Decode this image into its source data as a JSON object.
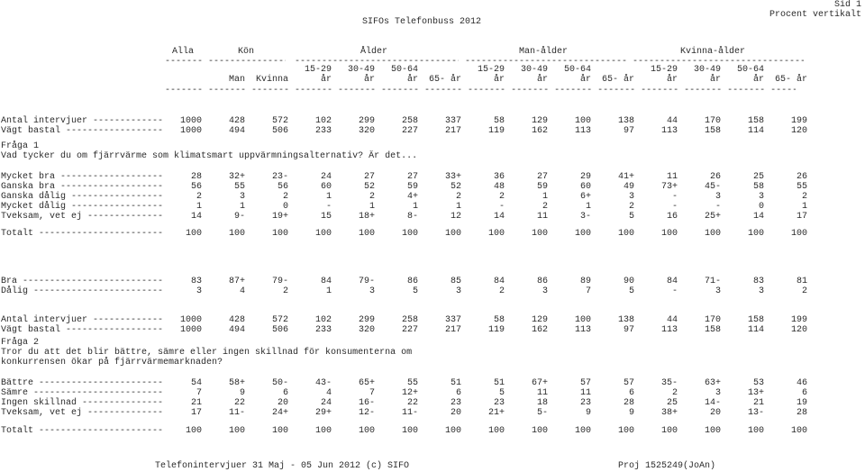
{
  "header": {
    "sid": "Sid 1",
    "procent": "Procent vertikalt",
    "title": "SIFOs Telefonbuss 2012"
  },
  "columns": {
    "groups": {
      "alla": "Alla",
      "kon": "Kön",
      "alder": "Ålder",
      "man_alder": "Man-ålder",
      "kvinna_alder": "Kvinna-ålder"
    },
    "sub_top": [
      "",
      "",
      "",
      "15-29",
      "30-49",
      "50-64",
      "",
      "15-29",
      "30-49",
      "50-64",
      "",
      "15-29",
      "30-49",
      "50-64",
      ""
    ],
    "sub_bottom": [
      "",
      "Man",
      "Kvinna",
      "år",
      "år",
      "år",
      "65- år",
      "år",
      "år",
      "år",
      "65- år",
      "år",
      "år",
      "år",
      "65- år"
    ]
  },
  "blocks": {
    "base1": [
      {
        "label": "Antal intervjuer -------------",
        "values": [
          "1000",
          "428",
          "572",
          "102",
          "299",
          "258",
          "337",
          "58",
          "129",
          "100",
          "138",
          "44",
          "170",
          "158",
          "199"
        ]
      },
      {
        "label": "Vägt bastal ------------------",
        "values": [
          "1000",
          "494",
          "506",
          "233",
          "320",
          "227",
          "217",
          "119",
          "162",
          "113",
          "97",
          "113",
          "158",
          "114",
          "120"
        ]
      }
    ],
    "q1": {
      "id": "Fråga 1",
      "text": [
        "Vad tycker du om fjärrvärme som klimatsmart uppvärmningsalternativ? Är det..."
      ]
    },
    "q1_answers": [
      {
        "label": "Mycket bra -------------------",
        "values": [
          "28",
          "32+",
          "23-",
          "24",
          "27",
          "27",
          "33+",
          "36",
          "27",
          "29",
          "41+",
          "11",
          "26",
          "25",
          "26"
        ]
      },
      {
        "label": "Ganska bra -------------------",
        "values": [
          "56",
          "55",
          "56",
          "60",
          "52",
          "59",
          "52",
          "48",
          "59",
          "60",
          "49",
          "73+",
          "45-",
          "58",
          "55"
        ]
      },
      {
        "label": "Ganska dålig -----------------",
        "values": [
          "2",
          "3",
          "2",
          "1",
          "2",
          "4+",
          "2",
          "2",
          "1",
          "6+",
          "3",
          "-",
          "3",
          "3",
          "2"
        ]
      },
      {
        "label": "Mycket dålig -----------------",
        "values": [
          "1",
          "1",
          "0",
          "-",
          "1",
          "1",
          "1",
          "-",
          "2",
          "1",
          "2",
          "-",
          "-",
          "0",
          "1"
        ]
      },
      {
        "label": "Tveksam, vet ej --------------",
        "values": [
          "14",
          "9-",
          "19+",
          "15",
          "18+",
          "8-",
          "12",
          "14",
          "11",
          "3-",
          "5",
          "16",
          "25+",
          "14",
          "17"
        ]
      }
    ],
    "q1_total": {
      "label": "Totalt -----------------------",
      "values": [
        "100",
        "100",
        "100",
        "100",
        "100",
        "100",
        "100",
        "100",
        "100",
        "100",
        "100",
        "100",
        "100",
        "100",
        "100"
      ]
    },
    "q1_summary": [
      {
        "label": "Bra --------------------------",
        "values": [
          "83",
          "87+",
          "79-",
          "84",
          "79-",
          "86",
          "85",
          "84",
          "86",
          "89",
          "90",
          "84",
          "71-",
          "83",
          "81"
        ]
      },
      {
        "label": "Dålig ------------------------",
        "values": [
          "3",
          "4",
          "2",
          "1",
          "3",
          "5",
          "3",
          "2",
          "3",
          "7",
          "5",
          "-",
          "3",
          "3",
          "2"
        ]
      }
    ],
    "base2": [
      {
        "label": "Antal intervjuer -------------",
        "values": [
          "1000",
          "428",
          "572",
          "102",
          "299",
          "258",
          "337",
          "58",
          "129",
          "100",
          "138",
          "44",
          "170",
          "158",
          "199"
        ]
      },
      {
        "label": "Vägt bastal ------------------",
        "values": [
          "1000",
          "494",
          "506",
          "233",
          "320",
          "227",
          "217",
          "119",
          "162",
          "113",
          "97",
          "113",
          "158",
          "114",
          "120"
        ]
      }
    ],
    "q2": {
      "id": "Fråga 2",
      "text": [
        "Tror du att det blir bättre, sämre eller ingen skillnad för konsumenterna om",
        "konkurrensen ökar på fjärrvärmemarknaden?"
      ]
    },
    "q2_answers": [
      {
        "label": "Bättre -----------------------",
        "values": [
          "54",
          "58+",
          "50-",
          "43-",
          "65+",
          "55",
          "51",
          "51",
          "67+",
          "57",
          "57",
          "35-",
          "63+",
          "53",
          "46"
        ]
      },
      {
        "label": "Sämre ------------------------",
        "values": [
          "7",
          "9",
          "6",
          "4",
          "7",
          "12+",
          "6",
          "5",
          "11",
          "11",
          "6",
          "2",
          "3",
          "13+",
          "6"
        ]
      },
      {
        "label": "Ingen skillnad ---------------",
        "values": [
          "21",
          "22",
          "20",
          "24",
          "16-",
          "22",
          "23",
          "23",
          "18",
          "23",
          "28",
          "25",
          "14-",
          "21",
          "19"
        ]
      },
      {
        "label": "Tveksam, vet ej --------------",
        "values": [
          "17",
          "11-",
          "24+",
          "29+",
          "12-",
          "11-",
          "20",
          "21+",
          "5-",
          "9",
          "9",
          "38+",
          "20",
          "13-",
          "28"
        ]
      }
    ],
    "q2_total": {
      "label": "Totalt -----------------------",
      "values": [
        "100",
        "100",
        "100",
        "100",
        "100",
        "100",
        "100",
        "100",
        "100",
        "100",
        "100",
        "100",
        "100",
        "100",
        "100"
      ]
    }
  },
  "footer": {
    "left": "Telefonintervjuer 31 Maj - 05 Jun 2012 (c) SIFO",
    "right": "Proj 1525249(JoAn)"
  }
}
